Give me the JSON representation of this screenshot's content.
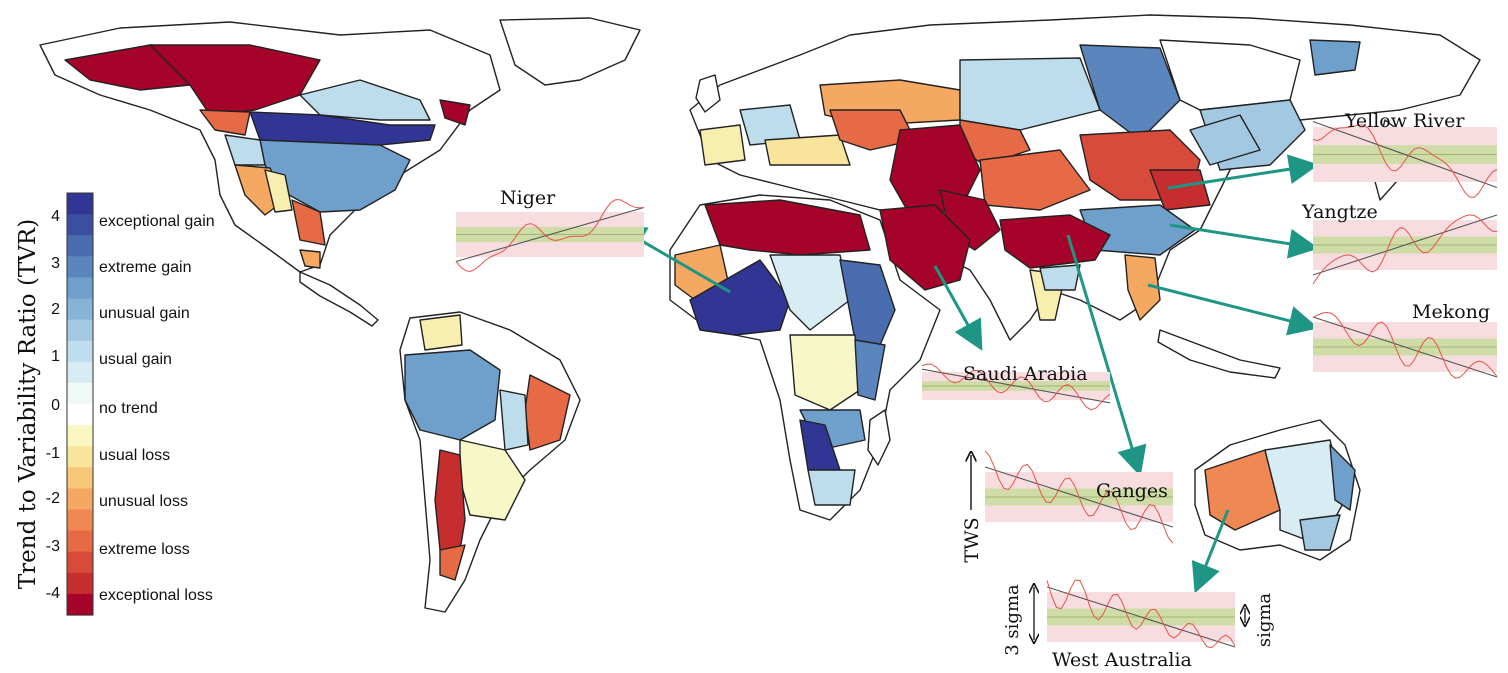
{
  "colorbar": {
    "title": "Trend to Variability Ratio (TVR)",
    "ticks": [
      "4",
      "3",
      "2",
      "1",
      "0",
      "-1",
      "-2",
      "-3",
      "-4"
    ],
    "categories": [
      "exceptional gain",
      "extreme gain",
      "unusual gain",
      "usual gain",
      "no trend",
      "usual loss",
      "unusual loss",
      "extreme loss",
      "exceptional loss"
    ],
    "colors": [
      "#313695",
      "#3b4fa0",
      "#4a6db0",
      "#5b86bd",
      "#6f9fcb",
      "#87b3d6",
      "#a3c8e2",
      "#bddcec",
      "#d8ecf3",
      "#f1f9f4",
      "#ffffff",
      "#fbf7c3",
      "#f8e49b",
      "#f7c877",
      "#f5a862",
      "#ef8852",
      "#e66a45",
      "#d84a39",
      "#c62d2f",
      "#a5032a"
    ]
  },
  "insets": [
    {
      "name": "Niger",
      "trend": "gain"
    },
    {
      "name": "Yellow River",
      "trend": "loss"
    },
    {
      "name": "Yangtze",
      "trend": "gain"
    },
    {
      "name": "Mekong",
      "trend": "loss"
    },
    {
      "name": "Saudi Arabia",
      "trend": "loss"
    },
    {
      "name": "Ganges",
      "trend": "loss"
    },
    {
      "name": "West Australia",
      "trend": "loss"
    }
  ],
  "annotations": {
    "tws": "TWS",
    "three_sigma": "3 sigma",
    "sigma": "sigma"
  },
  "palette": {
    "exceptional_gain": "#313695",
    "extreme_gain": "#4a6db0",
    "unusual_gain": "#6f9fcb",
    "usual_gain": "#bddcec",
    "faint_gain": "#d8ecf3",
    "no_trend": "#ffffff",
    "usual_loss": "#f8eeb0",
    "unusual_loss": "#f5a862",
    "extreme_loss": "#e66a45",
    "exceptional_loss": "#a5032a",
    "arrow": "#1f9585",
    "band_outer": "#f7dde0",
    "band_inner": "#cfdca8",
    "series": "#e8524a",
    "trendline": "#555555"
  }
}
